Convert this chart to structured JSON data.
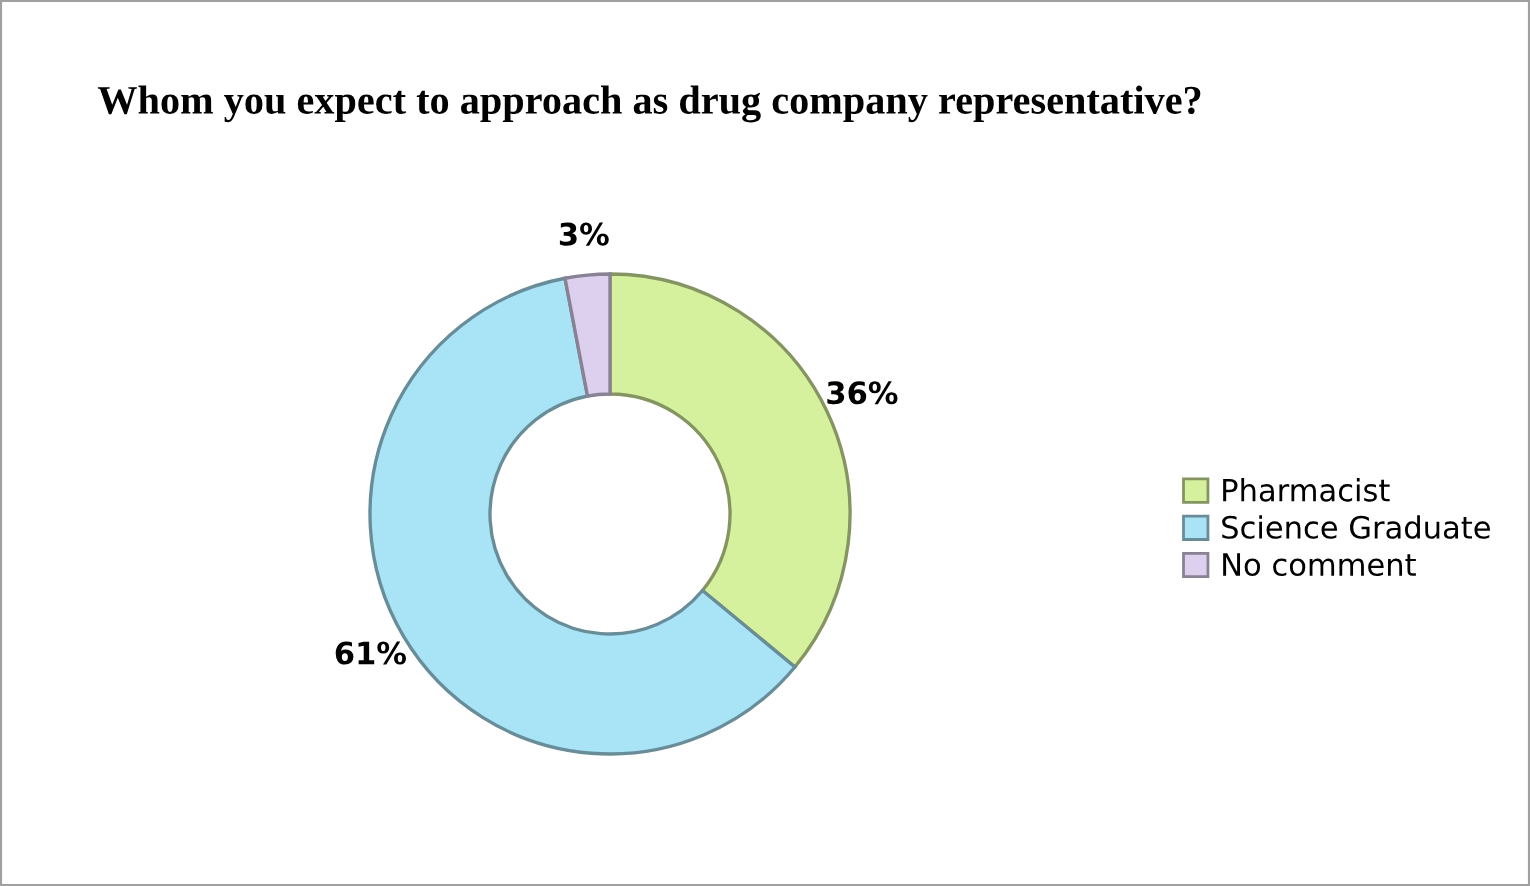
{
  "chart_data": {
    "type": "donut",
    "title": "Whom you expect to approach as drug company representative?",
    "categories": [
      "Pharmacist",
      "Science Graduate",
      "No comment"
    ],
    "values": [
      36,
      61,
      3
    ],
    "colors": [
      "#d6f19e",
      "#a8e3f6",
      "#ddd0ee"
    ],
    "value_labels": [
      "36%",
      "61%",
      "3%"
    ],
    "legend": "right"
  }
}
